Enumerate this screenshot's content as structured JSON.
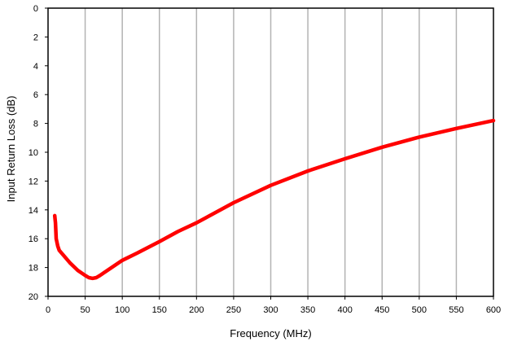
{
  "chart_data": {
    "type": "line",
    "title": "",
    "xlabel": "Frequency (MHz)",
    "ylabel": "Input Return Loss (dB)",
    "xlim": [
      0,
      600
    ],
    "ylim": [
      0,
      20
    ],
    "y_inverted": true,
    "grid": {
      "vertical": true,
      "horizontal": false
    },
    "x_ticks": [
      0,
      50,
      100,
      150,
      200,
      250,
      300,
      350,
      400,
      450,
      500,
      550,
      600
    ],
    "y_ticks": [
      0,
      2,
      4,
      6,
      8,
      10,
      12,
      14,
      16,
      18,
      20
    ],
    "series": [
      {
        "color": "#ff0000",
        "x": [
          9,
          10,
          10.5,
          11,
          13,
          15,
          20,
          30,
          40,
          50,
          55,
          60,
          65,
          70,
          80,
          100,
          120,
          150,
          175,
          200,
          250,
          300,
          350,
          400,
          450,
          500,
          550,
          600
        ],
        "y": [
          14.4,
          14.9,
          15.5,
          16.0,
          16.5,
          16.8,
          17.1,
          17.7,
          18.2,
          18.55,
          18.7,
          18.75,
          18.7,
          18.55,
          18.2,
          17.5,
          17.0,
          16.2,
          15.5,
          14.9,
          13.5,
          12.3,
          11.3,
          10.45,
          9.65,
          8.95,
          8.35,
          7.8
        ]
      }
    ]
  }
}
